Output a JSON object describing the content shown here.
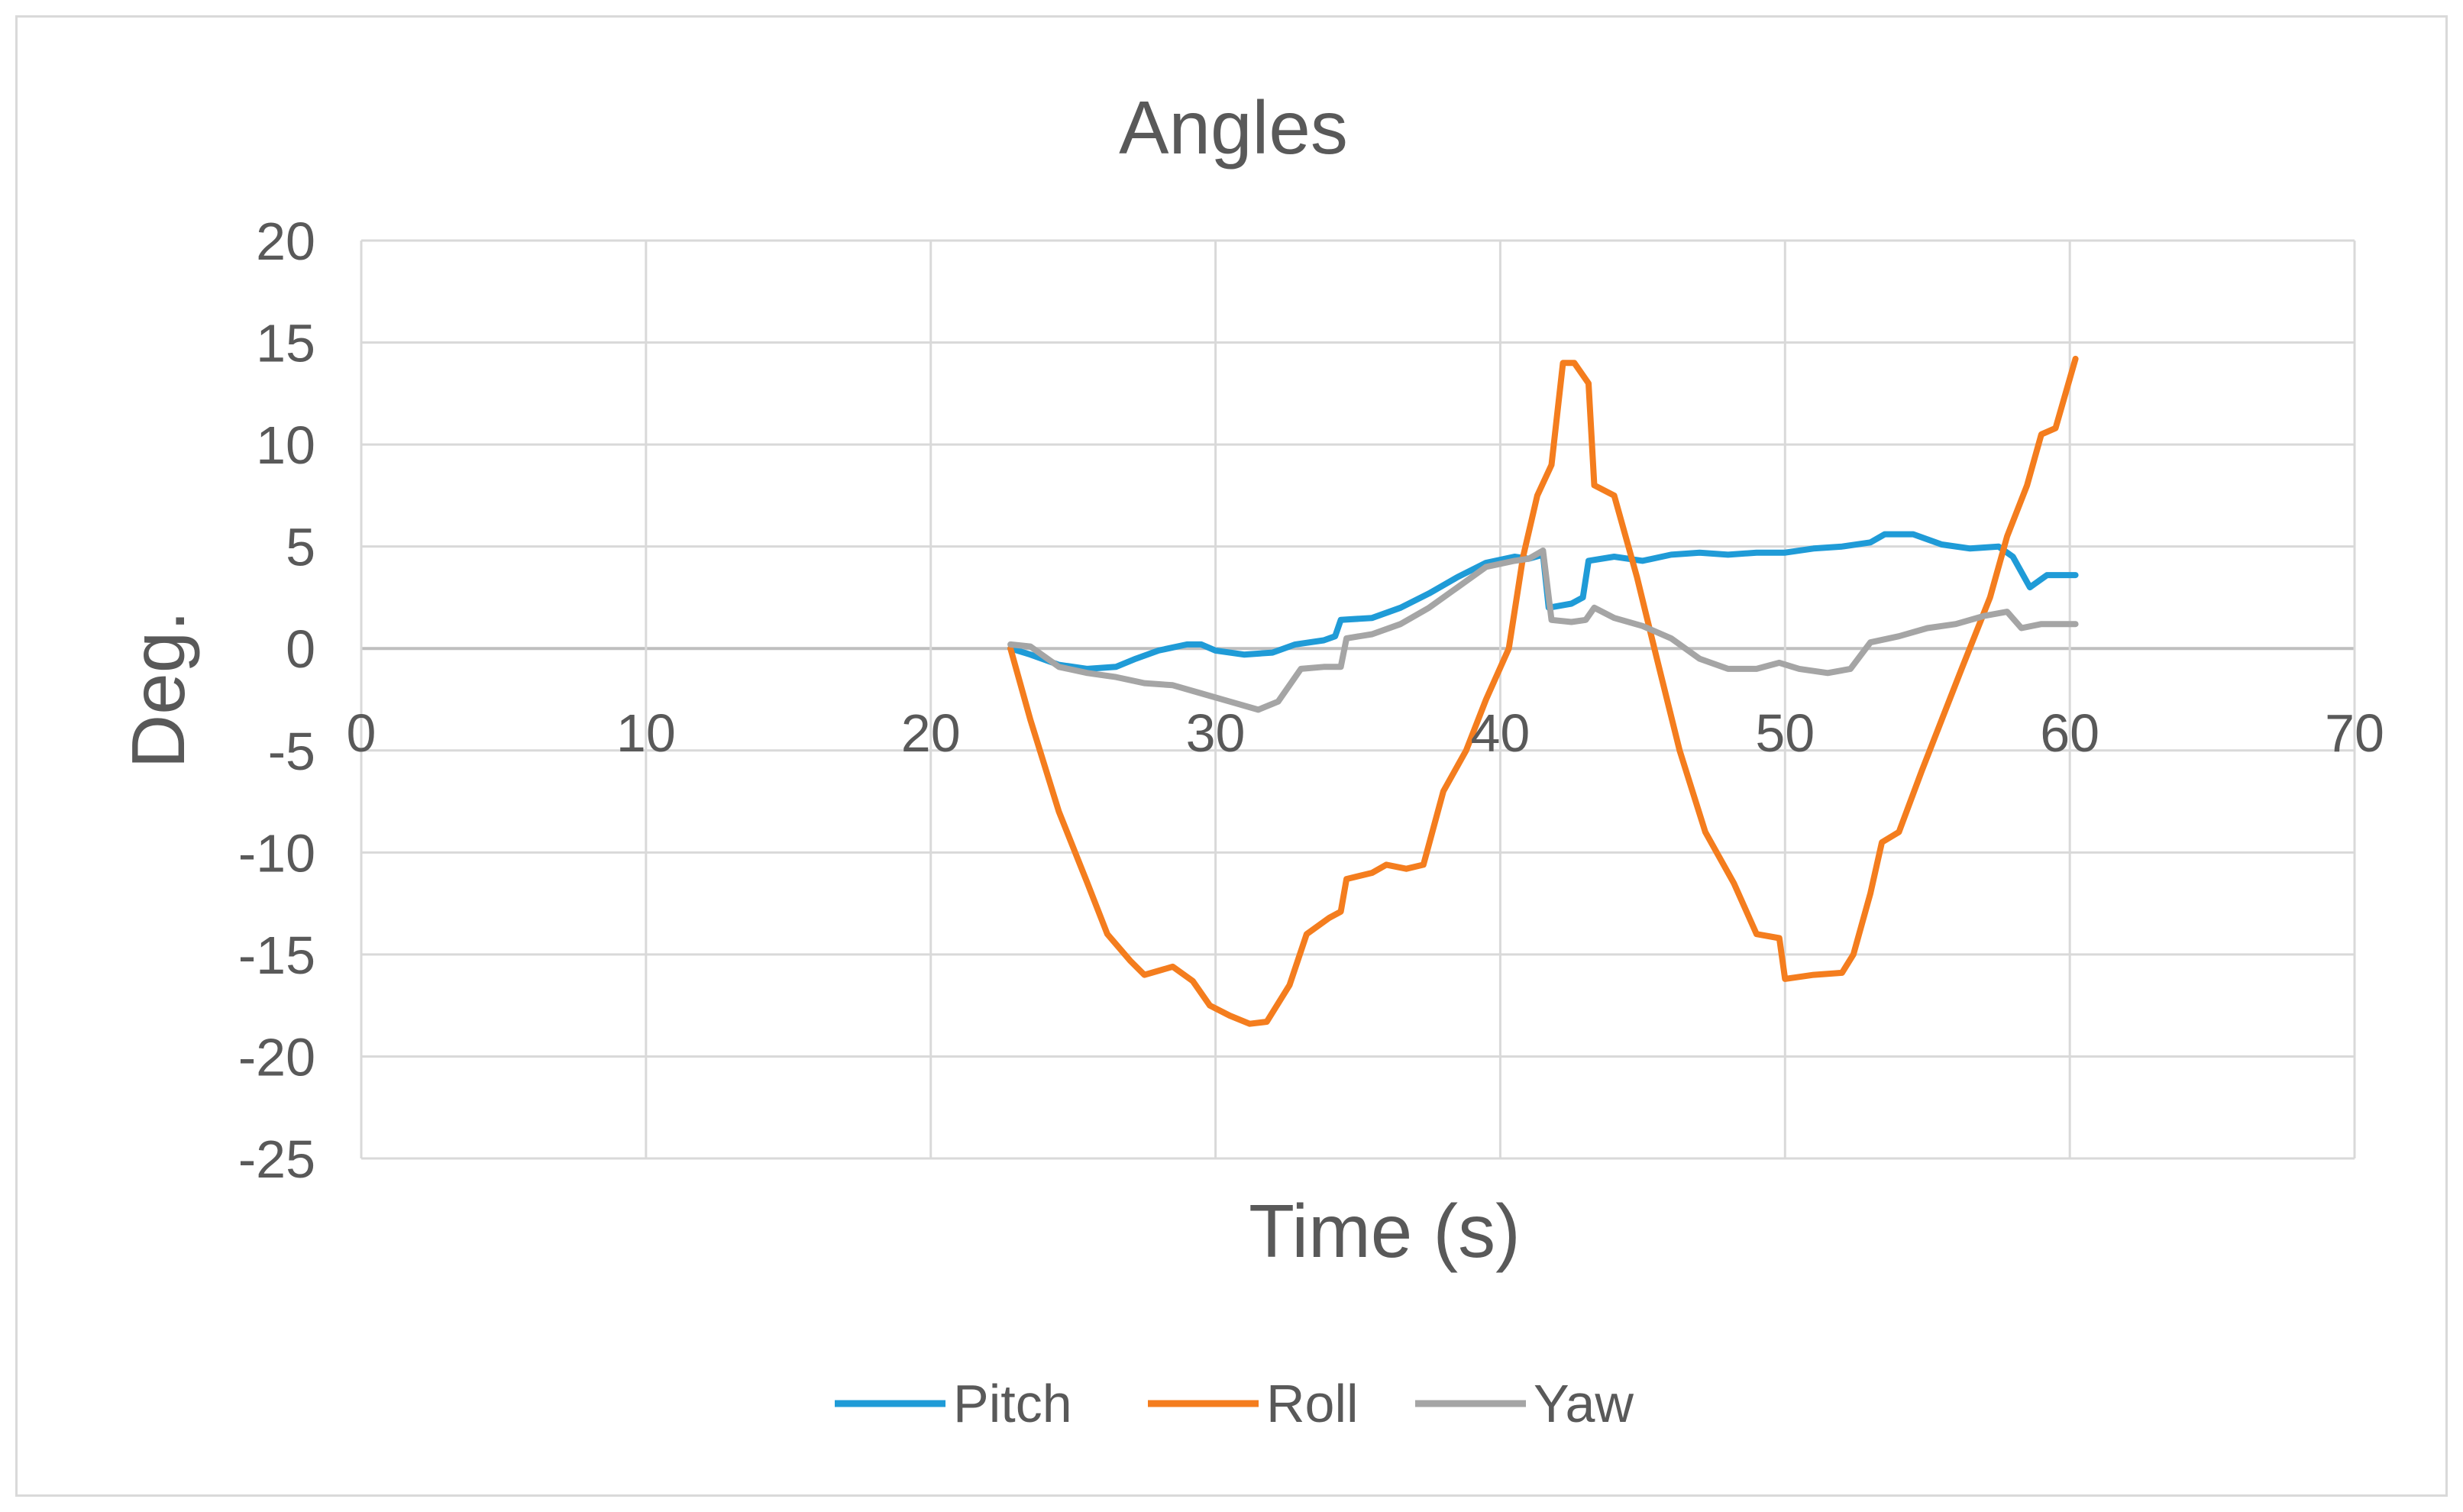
{
  "chart_data": {
    "type": "line",
    "title": "Angles",
    "xlabel": "Time (s)",
    "ylabel": "Deg.",
    "xlim": [
      0,
      70
    ],
    "ylim": [
      -25,
      20
    ],
    "x_ticks": [
      0,
      10,
      20,
      30,
      40,
      50,
      60,
      70
    ],
    "y_ticks": [
      20,
      15,
      10,
      5,
      0,
      -5,
      -10,
      -15,
      -20,
      -25
    ],
    "grid": true,
    "legend_position": "bottom",
    "series": [
      {
        "name": "Pitch",
        "color": "#1F9BD7",
        "points": [
          [
            22.8,
            0.0
          ],
          [
            23.5,
            -0.3
          ],
          [
            24.5,
            -0.8
          ],
          [
            25.5,
            -1.0
          ],
          [
            26.5,
            -0.9
          ],
          [
            27.2,
            -0.5
          ],
          [
            28,
            -0.1
          ],
          [
            29,
            0.2
          ],
          [
            29.5,
            0.2
          ],
          [
            30,
            -0.1
          ],
          [
            31,
            -0.3
          ],
          [
            32,
            -0.2
          ],
          [
            32.8,
            0.2
          ],
          [
            33.8,
            0.4
          ],
          [
            34.2,
            0.6
          ],
          [
            34.4,
            1.4
          ],
          [
            35.5,
            1.5
          ],
          [
            36.5,
            2.0
          ],
          [
            37.5,
            2.7
          ],
          [
            38.5,
            3.5
          ],
          [
            39.5,
            4.2
          ],
          [
            40.5,
            4.5
          ],
          [
            41,
            4.4
          ],
          [
            41.5,
            4.6
          ],
          [
            41.7,
            2.0
          ],
          [
            42.5,
            2.2
          ],
          [
            42.9,
            2.5
          ],
          [
            43.1,
            4.3
          ],
          [
            44,
            4.5
          ],
          [
            45,
            4.3
          ],
          [
            46,
            4.6
          ],
          [
            47,
            4.7
          ],
          [
            48,
            4.6
          ],
          [
            49,
            4.7
          ],
          [
            50,
            4.7
          ],
          [
            51,
            4.9
          ],
          [
            52,
            5.0
          ],
          [
            53,
            5.2
          ],
          [
            53.5,
            5.6
          ],
          [
            54.5,
            5.6
          ],
          [
            55.5,
            5.1
          ],
          [
            56.5,
            4.9
          ],
          [
            57.5,
            5.0
          ],
          [
            58,
            4.5
          ],
          [
            58.6,
            3.0
          ],
          [
            59.2,
            3.6
          ],
          [
            60.2,
            3.6
          ]
        ]
      },
      {
        "name": "Roll",
        "color": "#F47D1E",
        "points": [
          [
            22.8,
            0.0
          ],
          [
            23.5,
            -3.5
          ],
          [
            24.5,
            -8.0
          ],
          [
            25.5,
            -11.5
          ],
          [
            26.2,
            -14.0
          ],
          [
            27,
            -15.3
          ],
          [
            27.5,
            -16.0
          ],
          [
            28.5,
            -15.6
          ],
          [
            29.2,
            -16.3
          ],
          [
            29.8,
            -17.5
          ],
          [
            30.5,
            -18.0
          ],
          [
            31.2,
            -18.4
          ],
          [
            31.8,
            -18.3
          ],
          [
            32.6,
            -16.5
          ],
          [
            33.2,
            -14.0
          ],
          [
            34,
            -13.2
          ],
          [
            34.4,
            -12.9
          ],
          [
            34.6,
            -11.3
          ],
          [
            35.5,
            -11.0
          ],
          [
            36,
            -10.6
          ],
          [
            36.7,
            -10.8
          ],
          [
            37.3,
            -10.6
          ],
          [
            38,
            -7.0
          ],
          [
            38.8,
            -5.0
          ],
          [
            39.5,
            -2.5
          ],
          [
            40.3,
            0.0
          ],
          [
            40.8,
            4.5
          ],
          [
            41.3,
            7.5
          ],
          [
            41.8,
            9.0
          ],
          [
            42.2,
            14.0
          ],
          [
            42.6,
            14.0
          ],
          [
            43.1,
            13.0
          ],
          [
            43.3,
            8.0
          ],
          [
            44,
            7.5
          ],
          [
            44.8,
            3.5
          ],
          [
            45.5,
            -0.5
          ],
          [
            46.3,
            -5.0
          ],
          [
            47.2,
            -9.0
          ],
          [
            48.2,
            -11.5
          ],
          [
            49,
            -14.0
          ],
          [
            49.8,
            -14.2
          ],
          [
            50,
            -16.2
          ],
          [
            51,
            -16.0
          ],
          [
            52,
            -15.9
          ],
          [
            52.4,
            -15.0
          ],
          [
            53,
            -12.0
          ],
          [
            53.4,
            -9.5
          ],
          [
            54,
            -9.0
          ],
          [
            54.8,
            -6.0
          ],
          [
            55.5,
            -3.5
          ],
          [
            56.2,
            -1.0
          ],
          [
            57.2,
            2.5
          ],
          [
            57.8,
            5.5
          ],
          [
            58.5,
            8.0
          ],
          [
            59,
            10.5
          ],
          [
            59.5,
            10.8
          ],
          [
            60.2,
            14.2
          ]
        ]
      },
      {
        "name": "Yaw",
        "color": "#A5A5A5",
        "points": [
          [
            22.8,
            0.2
          ],
          [
            23.5,
            0.1
          ],
          [
            24.5,
            -0.9
          ],
          [
            25.5,
            -1.2
          ],
          [
            26.5,
            -1.4
          ],
          [
            27.5,
            -1.7
          ],
          [
            28.5,
            -1.8
          ],
          [
            29.5,
            -2.2
          ],
          [
            30.5,
            -2.6
          ],
          [
            31.5,
            -3.0
          ],
          [
            32.2,
            -2.6
          ],
          [
            33,
            -1.0
          ],
          [
            33.8,
            -0.9
          ],
          [
            34.4,
            -0.9
          ],
          [
            34.6,
            0.5
          ],
          [
            35.5,
            0.7
          ],
          [
            36.5,
            1.2
          ],
          [
            37.5,
            2.0
          ],
          [
            38.5,
            3.0
          ],
          [
            39.5,
            4.0
          ],
          [
            40.5,
            4.3
          ],
          [
            41,
            4.4
          ],
          [
            41.5,
            4.8
          ],
          [
            41.8,
            1.4
          ],
          [
            42.5,
            1.3
          ],
          [
            43,
            1.4
          ],
          [
            43.3,
            2.0
          ],
          [
            44,
            1.5
          ],
          [
            45,
            1.1
          ],
          [
            46,
            0.5
          ],
          [
            47,
            -0.5
          ],
          [
            48,
            -1.0
          ],
          [
            49,
            -1.0
          ],
          [
            49.8,
            -0.7
          ],
          [
            50.5,
            -1.0
          ],
          [
            51.5,
            -1.2
          ],
          [
            52.3,
            -1.0
          ],
          [
            53,
            0.3
          ],
          [
            54,
            0.6
          ],
          [
            55,
            1.0
          ],
          [
            56,
            1.2
          ],
          [
            57,
            1.6
          ],
          [
            57.8,
            1.8
          ],
          [
            58.3,
            1.0
          ],
          [
            59,
            1.2
          ],
          [
            60.2,
            1.2
          ]
        ]
      }
    ]
  }
}
